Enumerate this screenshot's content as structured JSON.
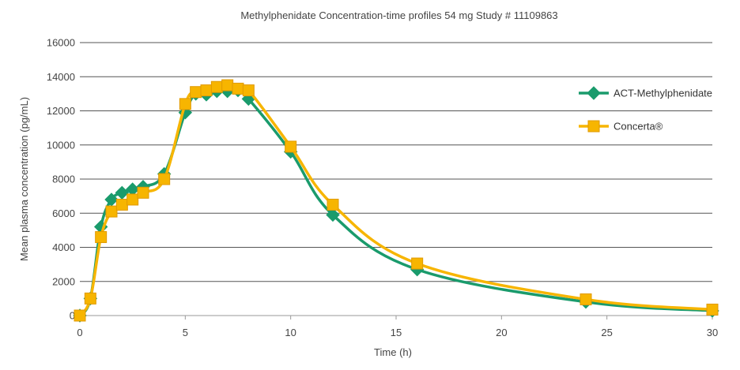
{
  "chart_data": {
    "type": "line",
    "title": "Methylphenidate Concentration-time profiles 54 mg Study # 11109863",
    "xlabel": "Time (h)",
    "ylabel": "Mean plasma concentration  (pg/mL)",
    "xlim": [
      0,
      30
    ],
    "ylim": [
      0,
      16000
    ],
    "x_ticks": [
      0,
      5,
      10,
      15,
      20,
      25,
      30
    ],
    "y_ticks": [
      0,
      2000,
      4000,
      6000,
      8000,
      10000,
      12000,
      14000,
      16000
    ],
    "grid": "horizontal",
    "legend_position": "right",
    "series": [
      {
        "name": "ACT-Methylphenidate",
        "color": "#1a9b6c",
        "marker": "diamond",
        "x": [
          0,
          0.5,
          1,
          1.5,
          2,
          2.5,
          3,
          4,
          5,
          5.5,
          6,
          6.5,
          7,
          7.5,
          8,
          10,
          12,
          16,
          24,
          30
        ],
        "y": [
          0,
          1000,
          5200,
          6800,
          7200,
          7400,
          7550,
          8300,
          11900,
          13000,
          12950,
          13150,
          13150,
          13200,
          12700,
          9600,
          5900,
          2700,
          800,
          280
        ]
      },
      {
        "name": "Concerta®",
        "color": "#f7b500",
        "marker": "square",
        "x": [
          0,
          0.5,
          1,
          1.5,
          2,
          2.5,
          3,
          4,
          5,
          5.5,
          6,
          6.5,
          7,
          7.5,
          8,
          10,
          12,
          16,
          24,
          30
        ],
        "y": [
          0,
          1000,
          4600,
          6100,
          6500,
          6800,
          7200,
          8000,
          12400,
          13100,
          13200,
          13400,
          13500,
          13300,
          13200,
          9900,
          6500,
          3050,
          950,
          350
        ]
      }
    ]
  }
}
